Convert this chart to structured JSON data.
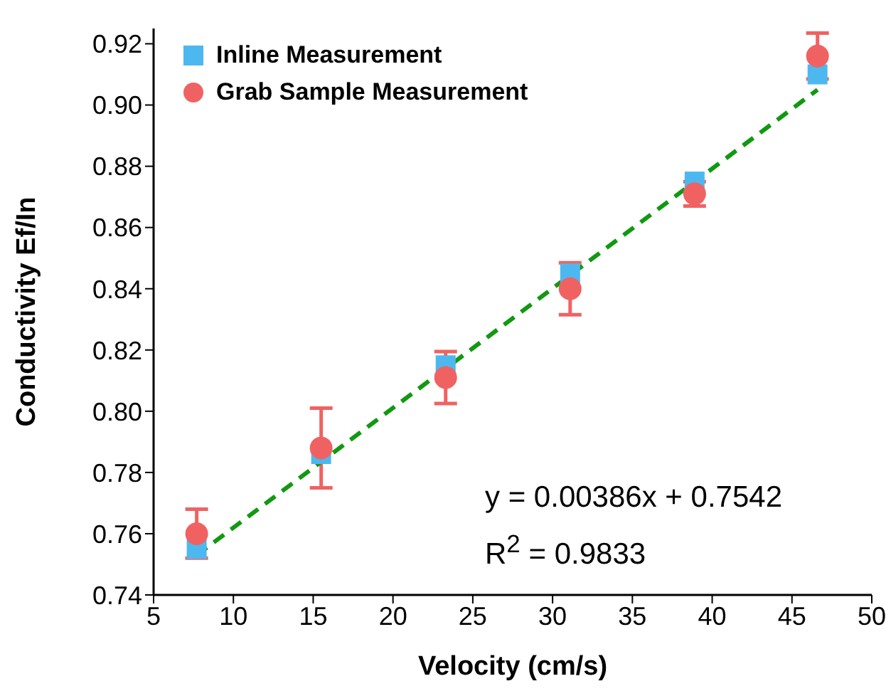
{
  "chart_data": {
    "type": "scatter",
    "xlabel": "Velocity (cm/s)",
    "ylabel": "Conductivity Ef/In",
    "xlim": [
      5,
      50
    ],
    "xticks": [
      5,
      10,
      15,
      20,
      25,
      30,
      35,
      40,
      45,
      50
    ],
    "ylim": [
      0.74,
      0.925
    ],
    "yticks": [
      0.74,
      0.76,
      0.78,
      {
        "value": 0.8,
        "label": "0.80"
      },
      0.82,
      0.84,
      0.86,
      0.88,
      {
        "value": 0.9,
        "label": "0.90"
      },
      0.92
    ],
    "x": [
      7.7,
      15.5,
      23.3,
      31.1,
      38.9,
      46.6
    ],
    "series": [
      {
        "name": "Inline Measurement",
        "color": "#4db8f0",
        "marker": "square",
        "values": [
          0.755,
          0.786,
          0.815,
          0.845,
          0.875,
          0.91
        ]
      },
      {
        "name": "Grab Sample Measurement",
        "color": "#f06262",
        "marker": "circle",
        "values": [
          0.76,
          0.788,
          0.811,
          0.84,
          0.871,
          0.916
        ],
        "errors": [
          0.008,
          0.013,
          0.0085,
          0.0085,
          0.004,
          0.0075
        ]
      },
      {
        "type": "line",
        "color": "#119911",
        "marker": "none",
        "line_style": "dashed",
        "x": [
          7.7,
          46.6
        ],
        "values": [
          0.753,
          0.905
        ]
      }
    ],
    "annotations": [
      "y = 0.00386x + 0.7542",
      "R$^{2}$ = 0.9833"
    ],
    "legend": "top left",
    "grid": false
  }
}
